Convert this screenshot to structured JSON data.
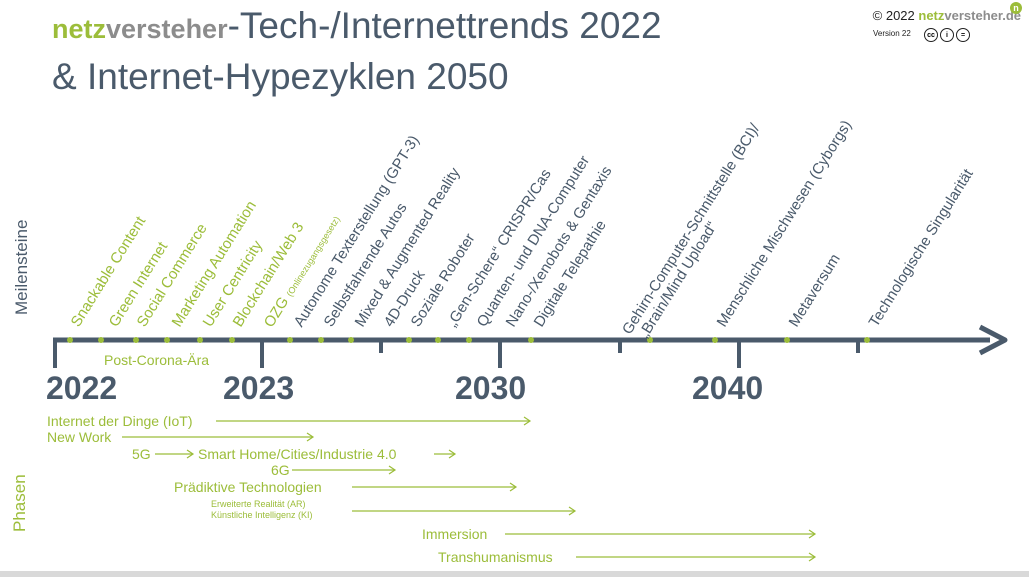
{
  "header": {
    "brand_netz": "netz",
    "brand_versteher": "versteher",
    "title_line1": "-Tech-/Internettrends 2022",
    "title_line2": "& Internet-Hypezyklen 2050",
    "copyright_prefix": "© 2022 ",
    "copyright_netz": "netz",
    "copyright_rest": "versteher.de",
    "version": "Version 22",
    "badge": "n",
    "license_icons": [
      "cc",
      "by",
      "nd"
    ]
  },
  "labels": {
    "milestones": "Meilensteine",
    "phases": "Phasen"
  },
  "timeline": {
    "years": [
      "2022",
      "2023",
      "2030",
      "2040"
    ],
    "post_corona": "Post-Corona-Ära"
  },
  "milestones": [
    {
      "text": "Snackable Content",
      "color": "#9cbd3a"
    },
    {
      "text": "Green Internet",
      "color": "#9cbd3a"
    },
    {
      "text": "Social Commerce",
      "color": "#9cbd3a"
    },
    {
      "text": "Marketing Automation",
      "color": "#9cbd3a"
    },
    {
      "text": "User Centricity",
      "color": "#9cbd3a"
    },
    {
      "text": "Blockchain/Web 3",
      "color": "#9cbd3a"
    },
    {
      "text": "OZG",
      "sub": "(Onlinezugangsgesetz)",
      "color": "#9cbd3a"
    },
    {
      "text": "Autonome Texterstellung (GPT-3)",
      "color": "#4a5a6b"
    },
    {
      "text": "Selbstfahrende Autos",
      "color": "#4a5a6b"
    },
    {
      "text": "Mixed & Augmented Reality",
      "color": "#4a5a6b"
    },
    {
      "text": "4D-Druck",
      "color": "#4a5a6b"
    },
    {
      "text": "Soziale Roboter",
      "color": "#4a5a6b"
    },
    {
      "text": "„Gen-Schere“ CRISPR/Cas",
      "color": "#4a5a6b"
    },
    {
      "text": "Quanten- und DNA-Computer",
      "color": "#4a5a6b"
    },
    {
      "text": "Nano-/Xenobots & Gentaxis",
      "color": "#4a5a6b"
    },
    {
      "text": "Digitale Telepathie",
      "color": "#4a5a6b"
    },
    {
      "text": "Gehirn-Computer-Schnittstelle (BCI)/",
      "line2": "„Brain/Mind Upload“",
      "color": "#4a5a6b"
    },
    {
      "text": "Menschliche Mischwesen (Cyborgs)",
      "color": "#4a5a6b"
    },
    {
      "text": "Metaversum",
      "color": "#4a5a6b"
    },
    {
      "text": "Technologische Singularität",
      "color": "#4a5a6b"
    }
  ],
  "phases": [
    {
      "text": "Internet der Dinge (IoT)"
    },
    {
      "text": "New Work"
    },
    {
      "text": "5G"
    },
    {
      "text": "Smart Home/Cities/Industrie 4.0"
    },
    {
      "text": "6G"
    },
    {
      "text": "Prädiktive Technologien"
    },
    {
      "text": "Erweiterte Realität (AR)"
    },
    {
      "text": "Künstliche Intelligenz (KI)"
    },
    {
      "text": "Immersion"
    },
    {
      "text": "Transhumanismus"
    }
  ],
  "colors": {
    "accent": "#9cbd3a",
    "slate": "#4a5a6b",
    "brand_grey": "#8c8c8c"
  }
}
